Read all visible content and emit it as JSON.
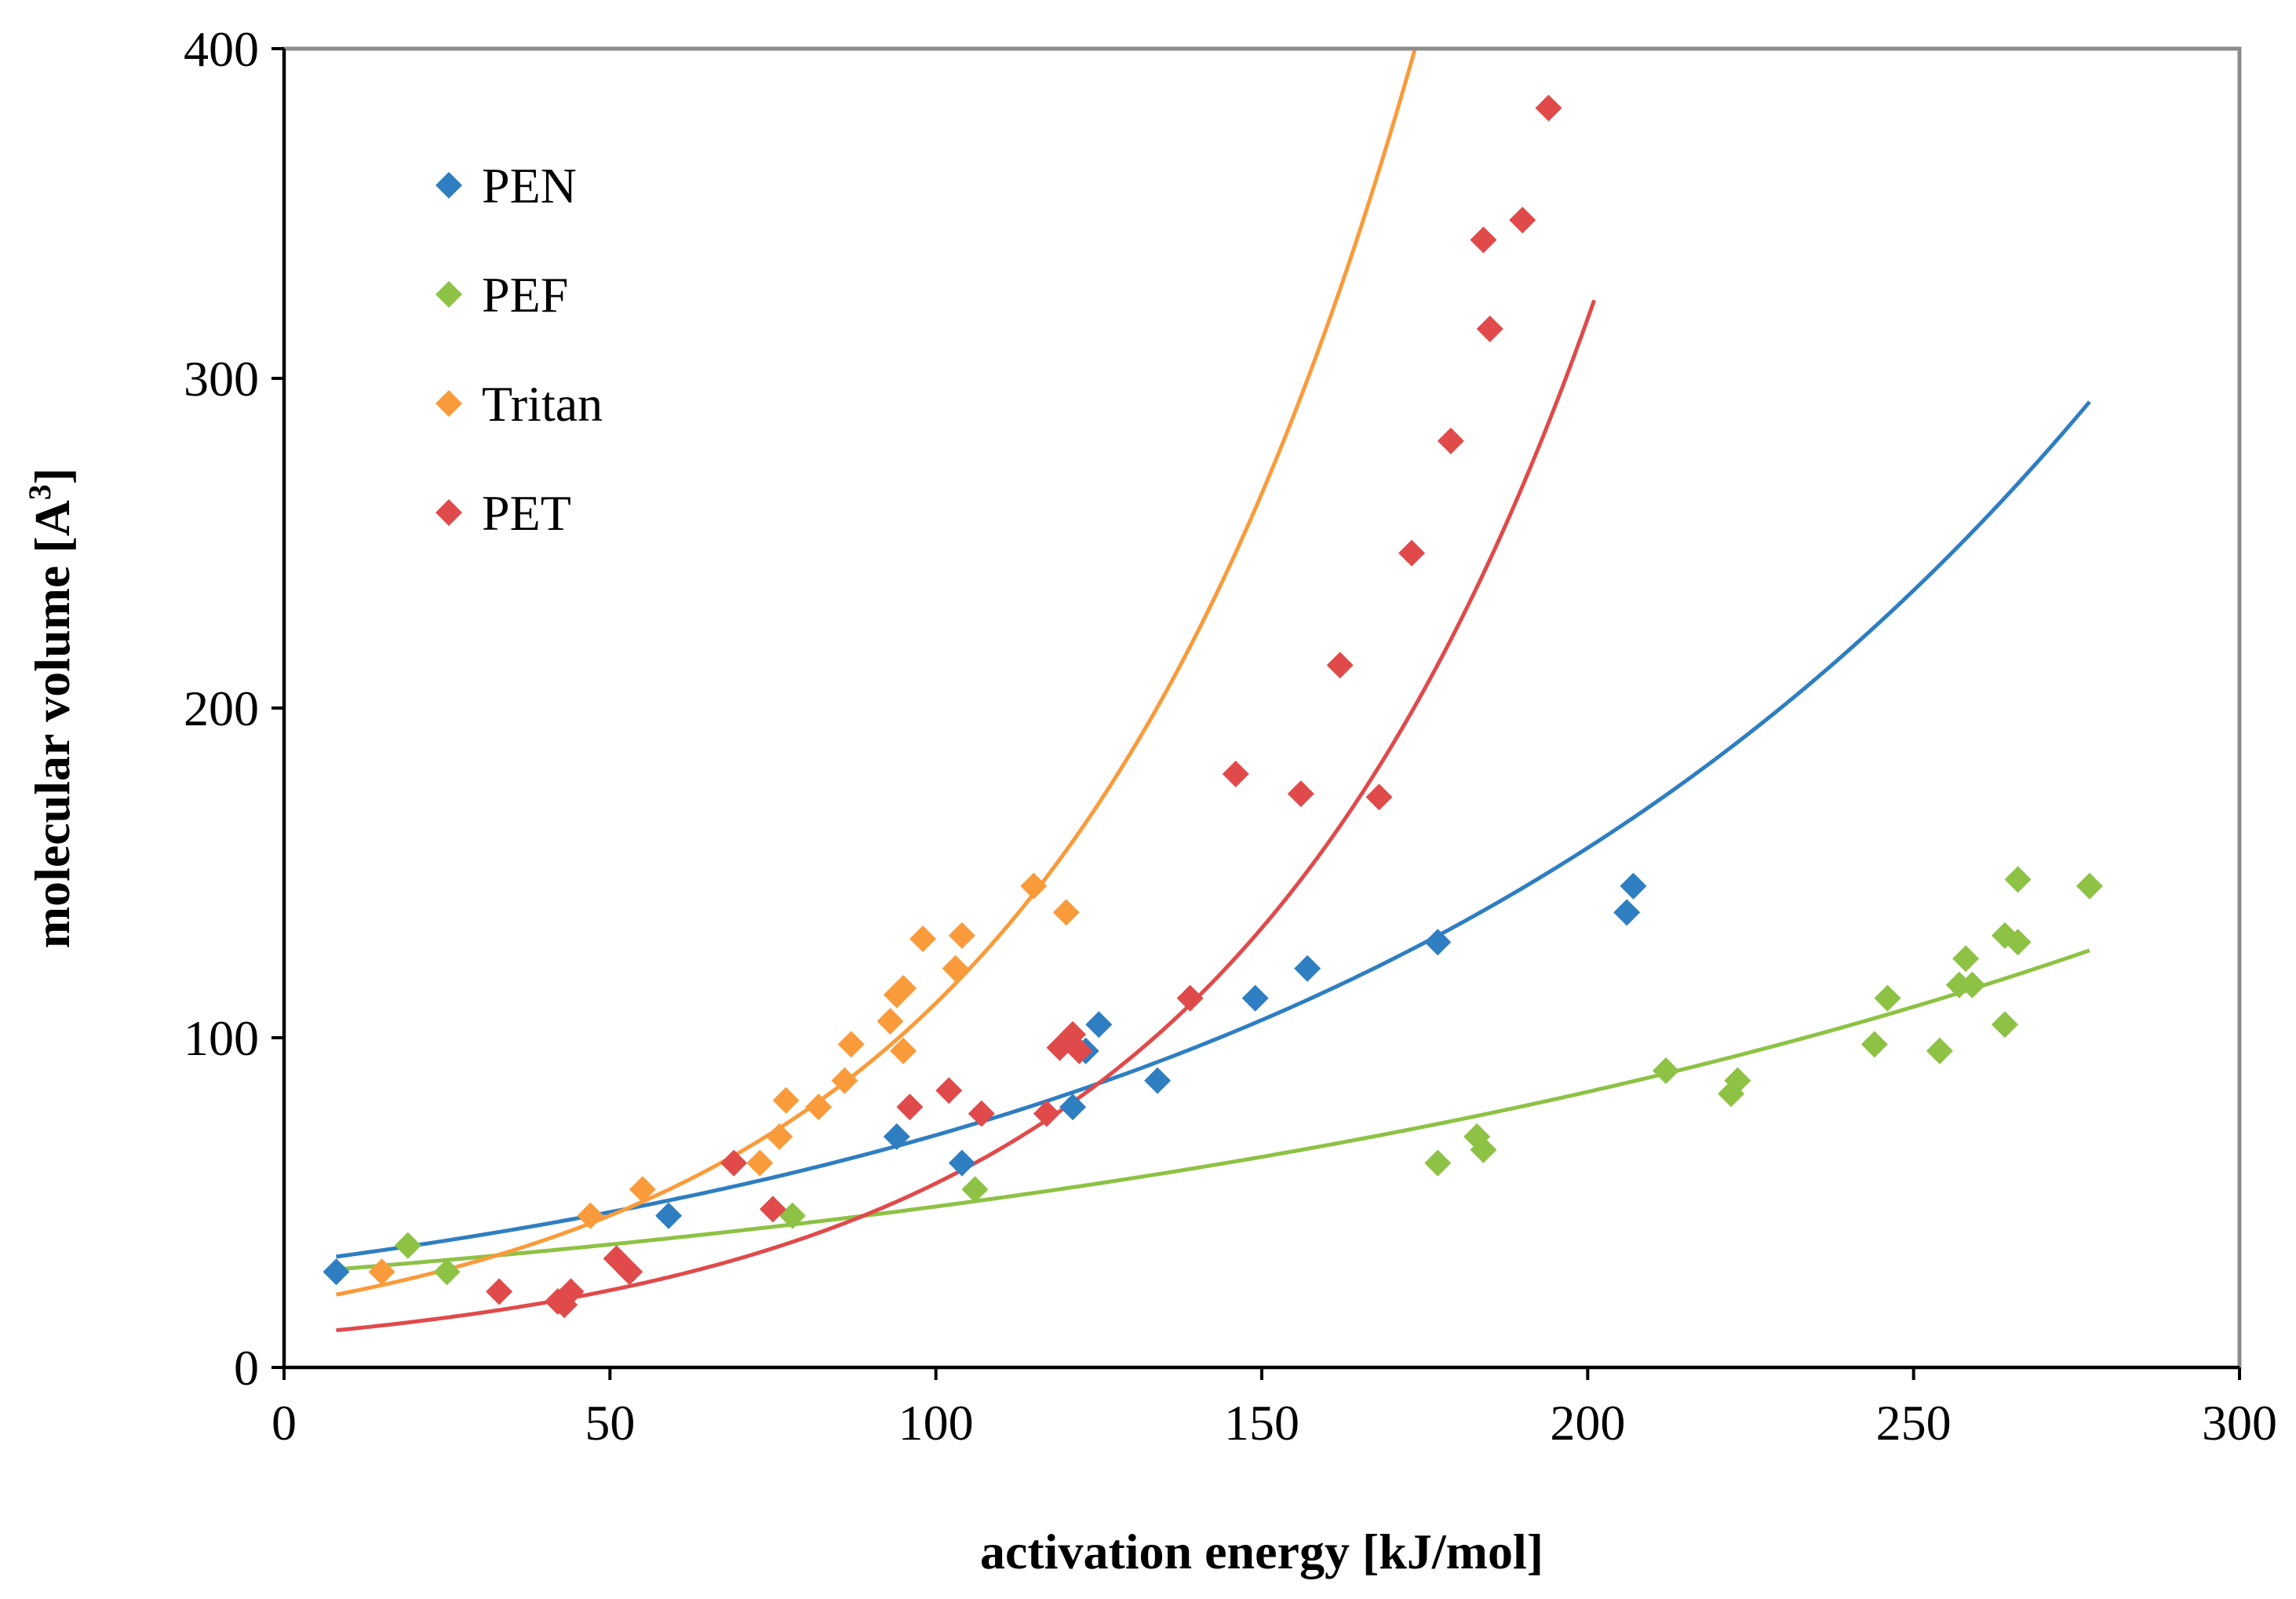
{
  "chart_data": {
    "type": "scatter",
    "title": "",
    "xlabel": "activation energy [kJ/mol]",
    "ylabel_main": "molecular volume [A",
    "ylabel_sup": "3",
    "ylabel_end": "]",
    "xlim": [
      0,
      300
    ],
    "ylim": [
      0,
      400
    ],
    "xticks": [
      0,
      50,
      100,
      150,
      200,
      250,
      300
    ],
    "yticks": [
      0,
      100,
      200,
      300,
      400
    ],
    "grid": false,
    "legend_position": "top-left",
    "series": [
      {
        "name": "PEN",
        "color": "#2E7EC1",
        "points": [
          [
            8,
            29
          ],
          [
            59,
            46
          ],
          [
            94,
            70
          ],
          [
            104,
            62
          ],
          [
            121,
            79
          ],
          [
            123,
            96
          ],
          [
            125,
            104
          ],
          [
            134,
            87
          ],
          [
            149,
            112
          ],
          [
            157,
            121
          ],
          [
            177,
            129
          ],
          [
            206,
            138
          ],
          [
            207,
            146
          ]
        ],
        "fit": {
          "a": 31.5,
          "b": 0.00805,
          "x_range": [
            8,
            277
          ]
        }
      },
      {
        "name": "PEF",
        "color": "#8DC244",
        "points": [
          [
            19,
            37
          ],
          [
            25,
            29
          ],
          [
            78,
            46
          ],
          [
            106,
            54
          ],
          [
            177,
            62
          ],
          [
            183,
            70
          ],
          [
            184,
            66
          ],
          [
            212,
            90
          ],
          [
            222,
            83
          ],
          [
            223,
            87
          ],
          [
            244,
            98
          ],
          [
            246,
            112
          ],
          [
            254,
            96
          ],
          [
            257,
            116
          ],
          [
            258,
            124
          ],
          [
            259,
            116
          ],
          [
            264,
            104
          ],
          [
            264,
            131
          ],
          [
            266,
            148
          ],
          [
            266,
            129
          ],
          [
            277,
            146
          ]
        ],
        "fit": {
          "a": 28.5,
          "b": 0.00538,
          "x_range": [
            8,
            277
          ]
        }
      },
      {
        "name": "Tritan",
        "color": "#F99B3B",
        "points": [
          [
            15,
            29
          ],
          [
            47,
            46
          ],
          [
            55,
            54
          ],
          [
            73,
            62
          ],
          [
            76,
            70
          ],
          [
            77,
            81
          ],
          [
            82,
            79
          ],
          [
            86,
            87
          ],
          [
            87,
            98
          ],
          [
            93,
            105
          ],
          [
            94,
            113
          ],
          [
            95,
            115
          ],
          [
            95,
            96
          ],
          [
            98,
            130
          ],
          [
            103,
            121
          ],
          [
            104,
            131
          ],
          [
            115,
            146
          ],
          [
            120,
            138
          ]
        ],
        "fit": {
          "a": 19.2,
          "b": 0.0175,
          "x_range": [
            8,
            174
          ]
        }
      },
      {
        "name": "PET",
        "color": "#E04A4A",
        "points": [
          [
            33,
            23
          ],
          [
            42,
            20
          ],
          [
            43,
            19
          ],
          [
            44,
            23
          ],
          [
            51,
            33
          ],
          [
            53,
            29
          ],
          [
            69,
            62
          ],
          [
            75,
            48
          ],
          [
            96,
            79
          ],
          [
            102,
            84
          ],
          [
            107,
            77
          ],
          [
            117,
            77
          ],
          [
            119,
            97
          ],
          [
            121,
            101
          ],
          [
            122,
            96
          ],
          [
            139,
            112
          ],
          [
            146,
            180
          ],
          [
            156,
            174
          ],
          [
            162,
            213
          ],
          [
            168,
            173
          ],
          [
            173,
            247
          ],
          [
            179,
            281
          ],
          [
            184,
            342
          ],
          [
            185,
            315
          ],
          [
            190,
            348
          ],
          [
            194,
            382
          ]
        ],
        "fit": {
          "a": 9.8,
          "b": 0.0174,
          "x_range": [
            8,
            201
          ]
        }
      }
    ]
  }
}
